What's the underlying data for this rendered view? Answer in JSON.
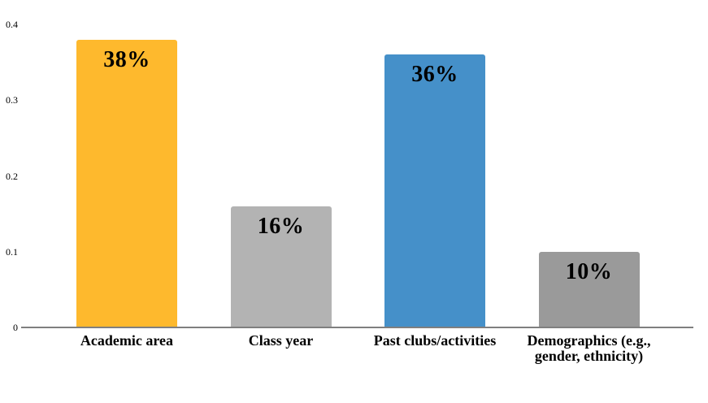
{
  "chart_data": {
    "type": "bar",
    "title": "",
    "xlabel": "",
    "ylabel": "",
    "categories": [
      "Academic area",
      "Class year",
      "Past clubs/activities",
      "Demographics (e.g., gender, ethnicity)"
    ],
    "values": [
      0.38,
      0.16,
      0.36,
      0.1
    ],
    "value_labels": [
      "38%",
      "16%",
      "36%",
      "10%"
    ],
    "bar_colors": [
      "#FEB92D",
      "#B3B3B3",
      "#4590C9",
      "#9A9A9A"
    ],
    "ylim": [
      0,
      0.4
    ],
    "yticks": [
      0,
      0.1,
      0.2,
      0.3,
      0.4
    ],
    "ytick_labels": [
      "0",
      "0.1",
      "0.2",
      "0.3",
      "0.4"
    ],
    "grid": false,
    "legend": false,
    "axis_line_color": "#7F7F7F",
    "text_color": "#000000",
    "background_color": "#FFFFFF"
  }
}
